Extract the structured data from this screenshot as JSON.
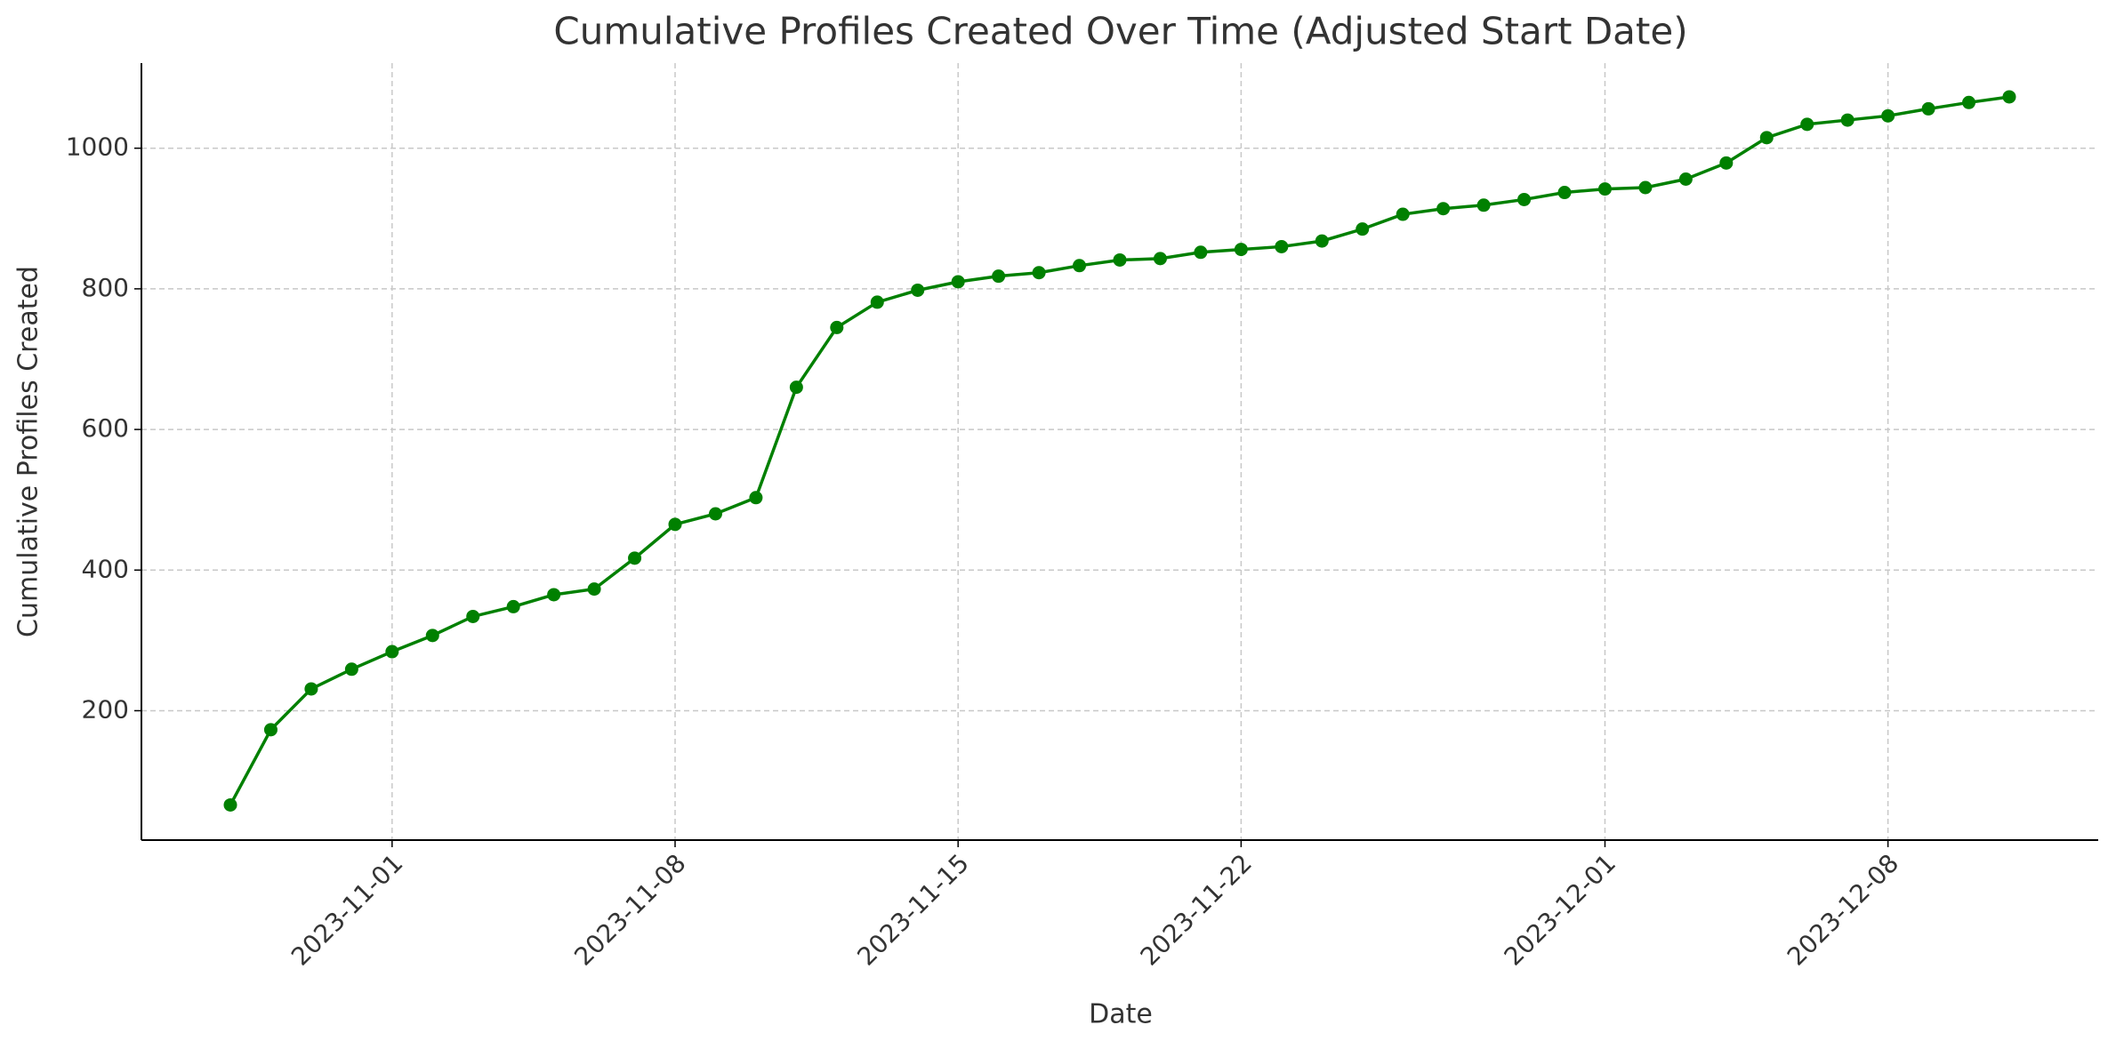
{
  "chart_data": {
    "type": "line",
    "title": "Cumulative Profiles Created Over Time (Adjusted Start Date)",
    "x_label": "Date",
    "y_label": "Cumulative Profiles Created",
    "x": [
      "2023-10-28",
      "2023-10-29",
      "2023-10-30",
      "2023-10-31",
      "2023-11-01",
      "2023-11-02",
      "2023-11-03",
      "2023-11-04",
      "2023-11-05",
      "2023-11-06",
      "2023-11-07",
      "2023-11-08",
      "2023-11-09",
      "2023-11-10",
      "2023-11-11",
      "2023-11-12",
      "2023-11-13",
      "2023-11-14",
      "2023-11-15",
      "2023-11-16",
      "2023-11-17",
      "2023-11-18",
      "2023-11-19",
      "2023-11-20",
      "2023-11-21",
      "2023-11-22",
      "2023-11-23",
      "2023-11-24",
      "2023-11-25",
      "2023-11-26",
      "2023-11-27",
      "2023-11-28",
      "2023-11-29",
      "2023-11-30",
      "2023-12-01",
      "2023-12-02",
      "2023-12-03",
      "2023-12-04",
      "2023-12-05",
      "2023-12-06",
      "2023-12-07",
      "2023-12-08",
      "2023-12-09",
      "2023-12-10",
      "2023-12-11"
    ],
    "series": [
      {
        "name": "Cumulative Profiles Created",
        "color": "#008000",
        "values": [
          66,
          173,
          231,
          259,
          284,
          307,
          334,
          348,
          365,
          373,
          417,
          465,
          480,
          503,
          660,
          745,
          781,
          798,
          810,
          818,
          823,
          833,
          841,
          843,
          852,
          856,
          860,
          868,
          885,
          906,
          914,
          919,
          927,
          937,
          942,
          944,
          956,
          979,
          1015,
          1034,
          1040,
          1046,
          1056,
          1065,
          1073
        ]
      }
    ],
    "xlim": [
      "2023-10-25T19:12:00Z",
      "2023-12-13T04:48:00Z"
    ],
    "xticks": [
      "2023-11-01",
      "2023-11-08",
      "2023-11-15",
      "2023-11-22",
      "2023-12-01",
      "2023-12-08"
    ],
    "ylim": [
      16,
      1121
    ],
    "yticks": [
      200,
      400,
      600,
      800,
      1000
    ],
    "grid": true,
    "legend": false
  }
}
